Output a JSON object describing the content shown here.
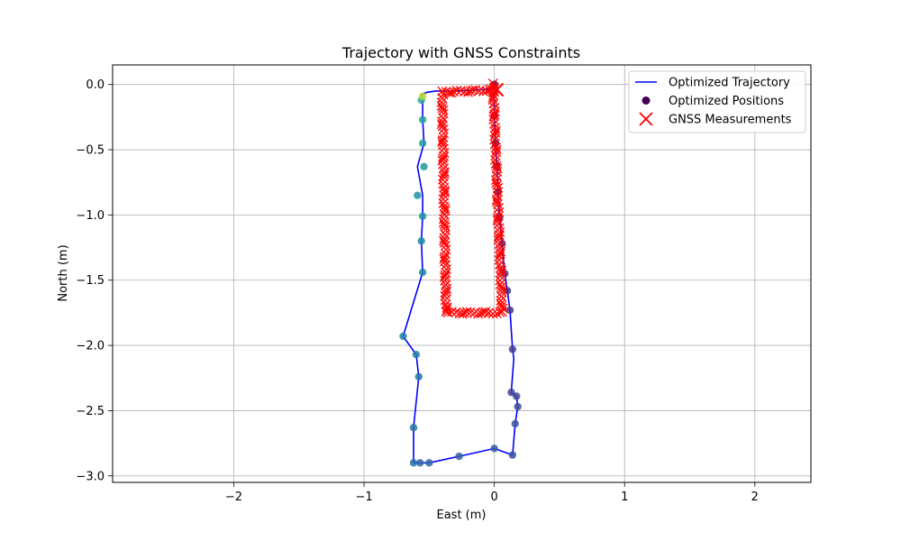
{
  "chart_data": {
    "type": "scatter",
    "title": "Trajectory with GNSS Constraints",
    "xlabel": "East (m)",
    "ylabel": "North (m)",
    "xlim": [
      -2.93,
      2.43
    ],
    "ylim": [
      -3.05,
      0.15
    ],
    "xticks": [
      -2,
      -1,
      0,
      1,
      2
    ],
    "xtick_labels": [
      "−2",
      "−1",
      "0",
      "1",
      "2"
    ],
    "yticks": [
      0.0,
      -0.5,
      -1.0,
      -1.5,
      -2.0,
      -2.5,
      -3.0
    ],
    "ytick_labels": [
      "0.0",
      "−0.5",
      "−1.0",
      "−1.5",
      "−2.0",
      "−2.5",
      "−3.0"
    ],
    "grid": true,
    "legend_position": "top-right",
    "legend": [
      {
        "label": "Optimized Trajectory",
        "kind": "line",
        "color": "#0000ff"
      },
      {
        "label": "Optimized Positions",
        "kind": "point",
        "color": "#440154"
      },
      {
        "label": "GNSS Measurements",
        "kind": "x",
        "color": "#ff0000"
      }
    ],
    "series": [
      {
        "kind": "line",
        "color": "#0000ff",
        "x": [
          0.0,
          0.0,
          0.01,
          0.02,
          0.03,
          0.04,
          0.06,
          0.08,
          0.1,
          0.12,
          0.14,
          0.15,
          0.13,
          0.17,
          0.18,
          0.16,
          0.14,
          0.0,
          -0.27,
          -0.5,
          -0.57,
          -0.62,
          -0.62,
          -0.58,
          -0.6,
          -0.7,
          -0.55,
          -0.56,
          -0.55,
          -0.55,
          -0.59,
          -0.54,
          -0.55,
          -0.55,
          -0.56,
          -0.56,
          -0.52,
          -0.45,
          -0.3,
          -0.1,
          0.0
        ],
        "y": [
          0.0,
          -0.24,
          -0.45,
          -0.62,
          -0.82,
          -1.02,
          -1.22,
          -1.45,
          -1.58,
          -1.73,
          -2.03,
          -2.1,
          -2.36,
          -2.39,
          -2.47,
          -2.6,
          -2.84,
          -2.79,
          -2.85,
          -2.9,
          -2.9,
          -2.9,
          -2.63,
          -2.24,
          -2.07,
          -1.93,
          -1.44,
          -1.2,
          -1.01,
          -0.85,
          -0.63,
          -0.45,
          -0.27,
          -0.12,
          -0.09,
          -0.08,
          -0.06,
          -0.05,
          -0.05,
          -0.04,
          -0.03
        ]
      },
      {
        "kind": "points",
        "x": [
          0.0,
          0.0,
          0.01,
          0.02,
          0.03,
          0.04,
          0.06,
          0.08,
          0.1,
          0.12,
          0.14,
          0.13,
          0.17,
          0.18,
          0.16,
          0.14,
          0.0,
          -0.27,
          -0.5,
          -0.57,
          -0.62,
          -0.62,
          -0.58,
          -0.6,
          -0.7,
          -0.55,
          -0.56,
          -0.55,
          -0.59,
          -0.54,
          -0.55,
          -0.55,
          -0.56,
          -0.55
        ],
        "y": [
          0.0,
          -0.24,
          -0.45,
          -0.62,
          -0.82,
          -1.02,
          -1.22,
          -1.45,
          -1.58,
          -1.73,
          -2.03,
          -2.36,
          -2.39,
          -2.47,
          -2.6,
          -2.84,
          -2.79,
          -2.85,
          -2.9,
          -2.9,
          -2.9,
          -2.63,
          -2.24,
          -2.07,
          -1.93,
          -1.44,
          -1.2,
          -1.01,
          -0.85,
          -0.63,
          -0.45,
          -0.27,
          -0.12,
          -0.09
        ],
        "colors": [
          "#440154",
          "#45085b",
          "#460f62",
          "#461569",
          "#471b6f",
          "#472176",
          "#47267b",
          "#472c81",
          "#463286",
          "#44378b",
          "#433d8f",
          "#414293",
          "#3e4896",
          "#3c4d99",
          "#39529b",
          "#37579d",
          "#345c9f",
          "#3261a1",
          "#2f66a2",
          "#2d6ba3",
          "#2b70a4",
          "#2874a4",
          "#2679a5",
          "#247ea5",
          "#2282a6",
          "#2187a6",
          "#1f8ba5",
          "#1e90a5",
          "#1d95a4",
          "#1f99a2",
          "#209ea0",
          "#25a29d",
          "#2ba69a",
          "#b8de29"
        ]
      },
      {
        "kind": "gnss",
        "color": "#ff0000",
        "segments": [
          {
            "from": [
              -0.01,
              0.0
            ],
            "to": [
              0.06,
              -1.75
            ],
            "n": 70
          },
          {
            "from": [
              0.06,
              -1.75
            ],
            "to": [
              -0.37,
              -1.75
            ],
            "n": 18
          },
          {
            "from": [
              -0.37,
              -1.75
            ],
            "to": [
              -0.4,
              -0.06
            ],
            "n": 70
          },
          {
            "from": [
              -0.4,
              -0.06
            ],
            "to": [
              0.03,
              -0.04
            ],
            "n": 18
          }
        ],
        "big_marker": [
          0.02,
          -0.04
        ]
      }
    ]
  }
}
